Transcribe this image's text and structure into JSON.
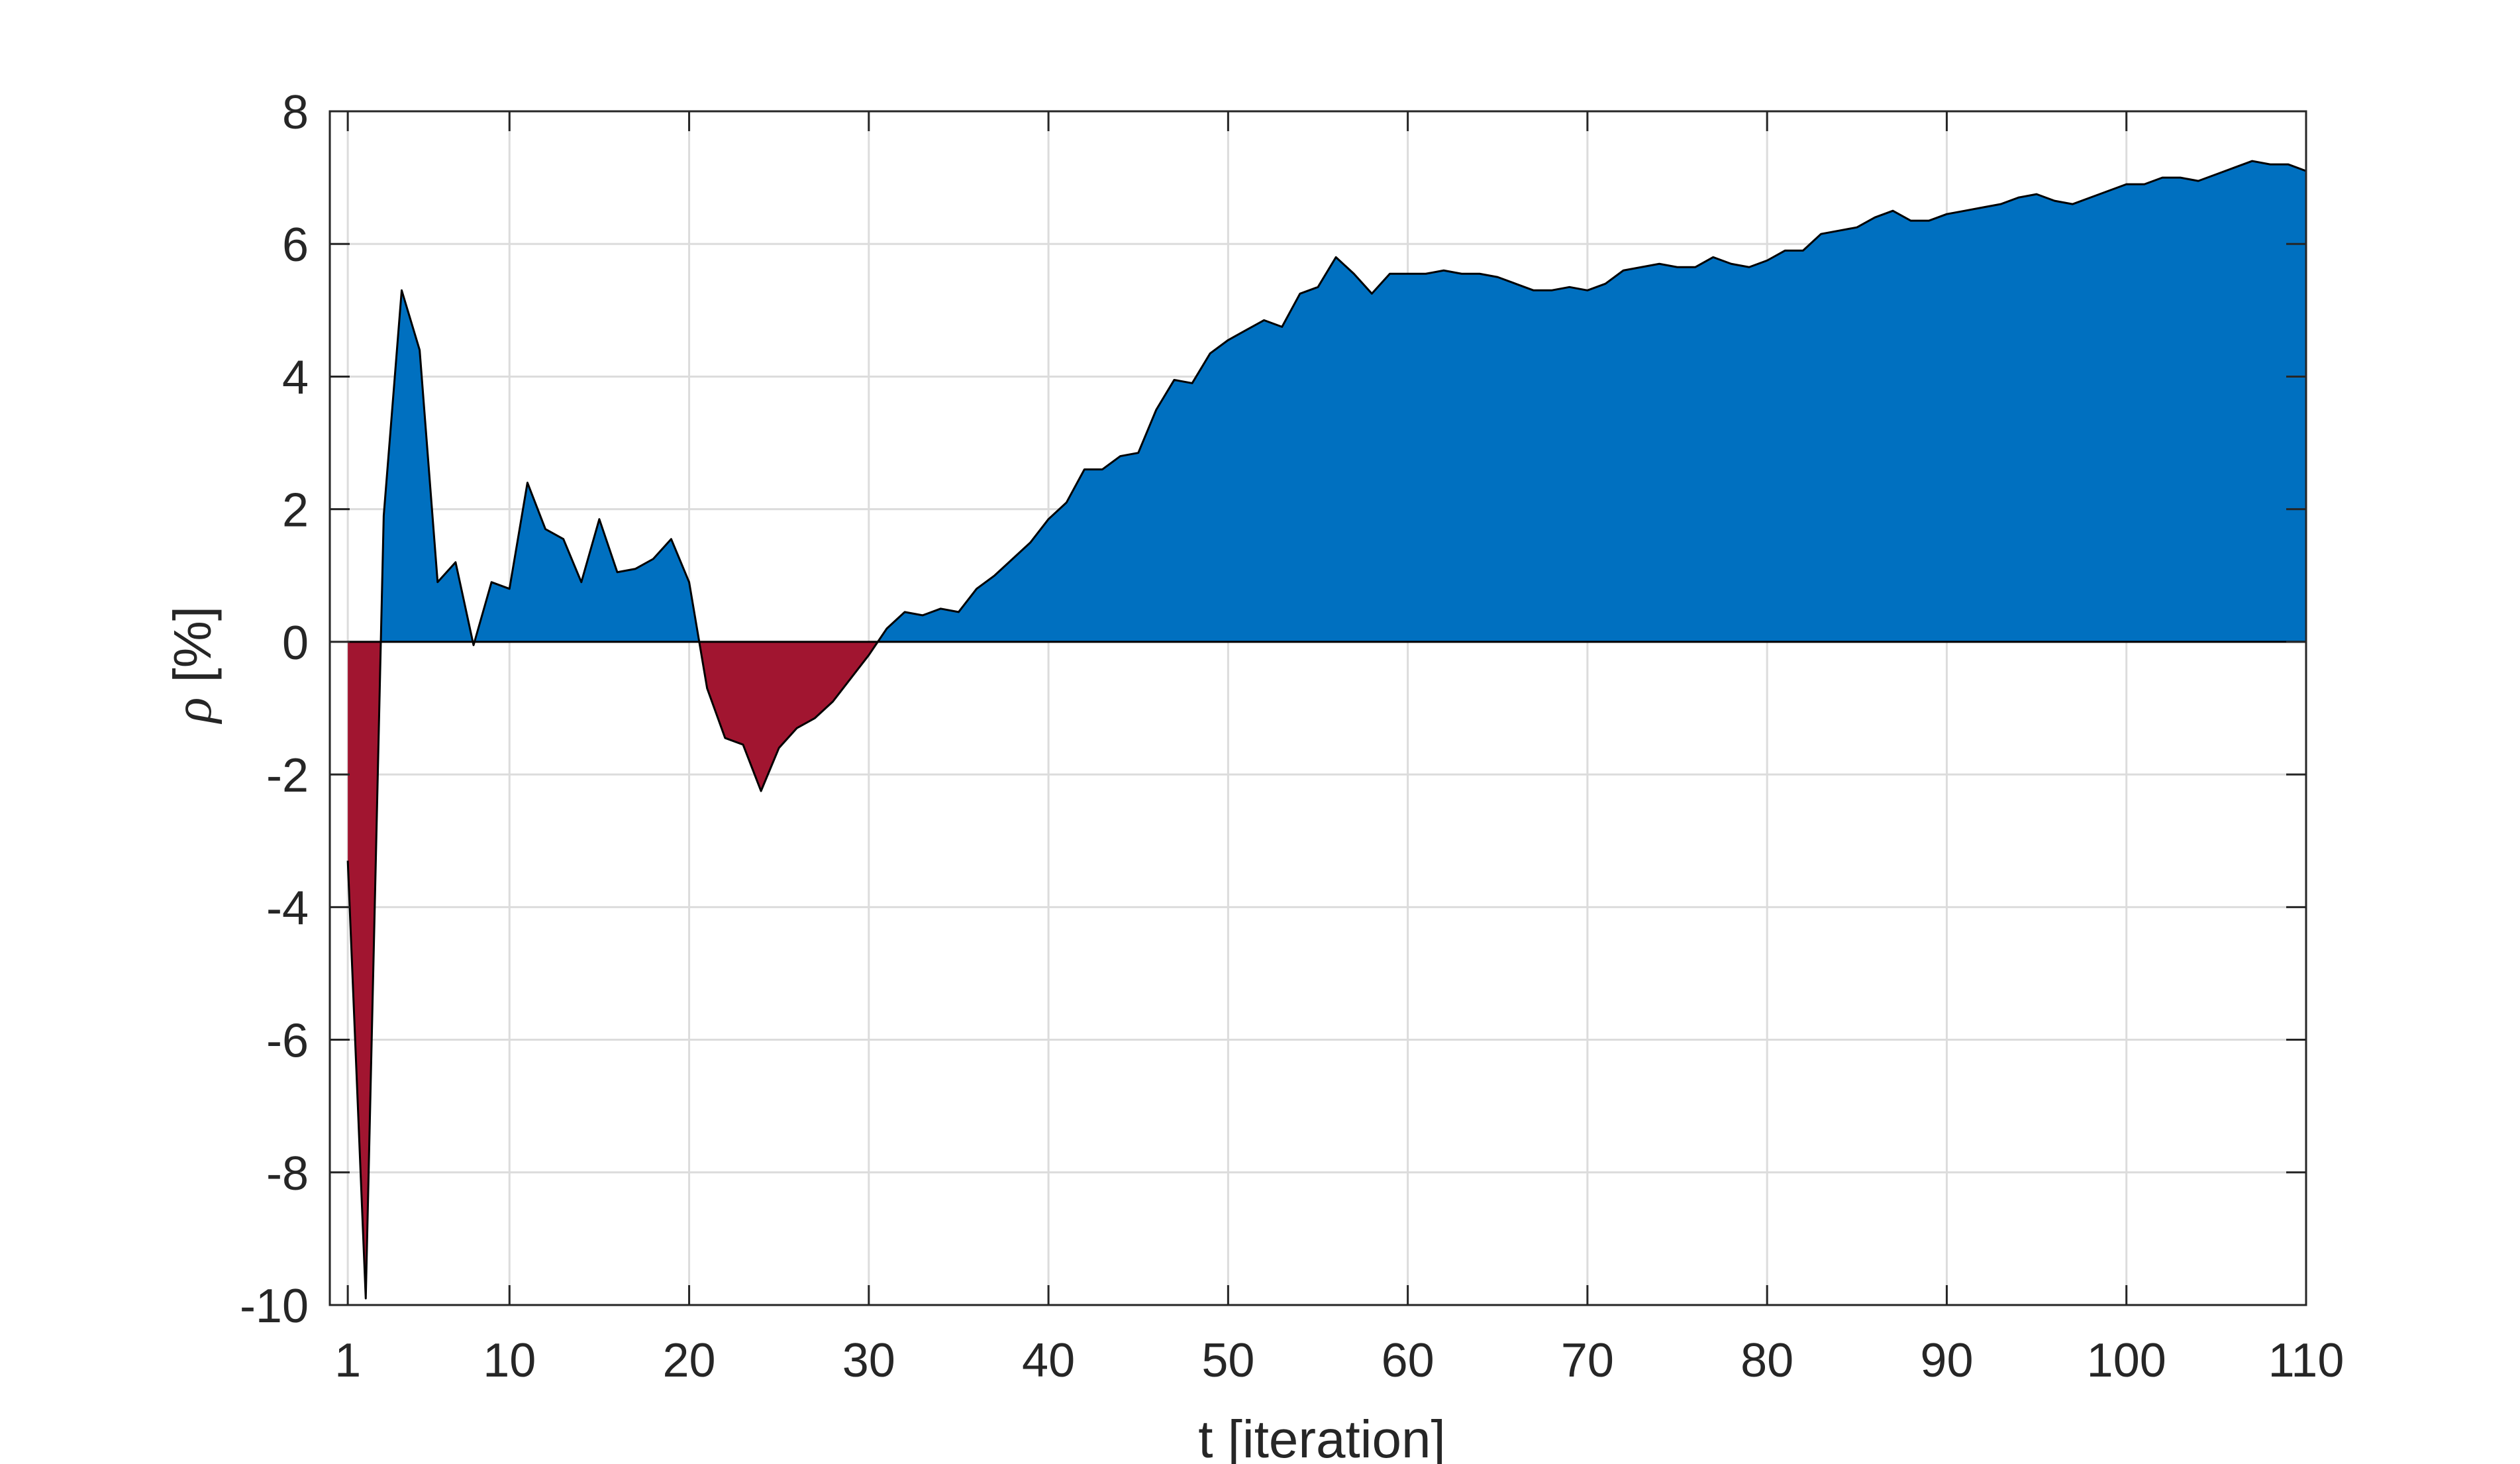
{
  "chart_data": {
    "type": "area",
    "title": "",
    "xlabel": "t [iteration]",
    "ylabel_symbol": "ρ",
    "ylabel_unit": "[%]",
    "xlim": [
      0,
      110
    ],
    "ylim": [
      -10,
      8
    ],
    "xticks": [
      1,
      10,
      20,
      30,
      40,
      50,
      60,
      70,
      80,
      90,
      100,
      110
    ],
    "yticks": [
      8,
      6,
      4,
      2,
      0,
      -2,
      -4,
      -6,
      -8,
      -10
    ],
    "grid": true,
    "colors": {
      "positive": "#0070C0",
      "negative": "#A11530",
      "outline": "#000000",
      "grid": "#dcdcdc"
    },
    "x": [
      1,
      2,
      3,
      4,
      5,
      6,
      7,
      8,
      9,
      10,
      11,
      12,
      13,
      14,
      15,
      16,
      17,
      18,
      19,
      20,
      21,
      22,
      23,
      24,
      25,
      26,
      27,
      28,
      29,
      30,
      31,
      32,
      33,
      34,
      35,
      36,
      37,
      38,
      39,
      40,
      41,
      42,
      43,
      44,
      45,
      46,
      47,
      48,
      49,
      50,
      51,
      52,
      53,
      54,
      55,
      56,
      57,
      58,
      59,
      60,
      61,
      62,
      63,
      64,
      65,
      66,
      67,
      68,
      69,
      70,
      71,
      72,
      73,
      74,
      75,
      76,
      77,
      78,
      79,
      80,
      81,
      82,
      83,
      84,
      85,
      86,
      87,
      88,
      89,
      90,
      91,
      92,
      93,
      94,
      95,
      96,
      97,
      98,
      99,
      100,
      101,
      102,
      103,
      104,
      105,
      106,
      107,
      108,
      109,
      110
    ],
    "values": [
      -3.3,
      -9.9,
      1.9,
      5.3,
      4.4,
      0.9,
      1.2,
      -0.05,
      0.9,
      0.8,
      2.4,
      1.7,
      1.55,
      0.9,
      1.85,
      1.05,
      1.1,
      1.25,
      1.55,
      0.9,
      -0.7,
      -1.45,
      -1.55,
      -2.25,
      -1.6,
      -1.3,
      -1.15,
      -0.9,
      -0.55,
      -0.2,
      0.2,
      0.45,
      0.4,
      0.5,
      0.45,
      0.8,
      1.0,
      1.25,
      1.5,
      1.85,
      2.1,
      2.6,
      2.6,
      2.8,
      2.85,
      3.5,
      3.95,
      3.9,
      4.35,
      4.55,
      4.7,
      4.85,
      4.75,
      5.25,
      5.35,
      5.8,
      5.55,
      5.25,
      5.55,
      5.55,
      5.55,
      5.6,
      5.55,
      5.55,
      5.5,
      5.4,
      5.3,
      5.3,
      5.35,
      5.3,
      5.4,
      5.6,
      5.65,
      5.7,
      5.65,
      5.65,
      5.8,
      5.7,
      5.65,
      5.75,
      5.9,
      5.9,
      6.15,
      6.2,
      6.25,
      6.4,
      6.5,
      6.35,
      6.35,
      6.45,
      6.5,
      6.55,
      6.6,
      6.7,
      6.75,
      6.65,
      6.6,
      6.7,
      6.8,
      6.9,
      6.9,
      7.0,
      7.0,
      6.95,
      7.05,
      7.15,
      7.25,
      7.2,
      7.2,
      7.1
    ]
  }
}
